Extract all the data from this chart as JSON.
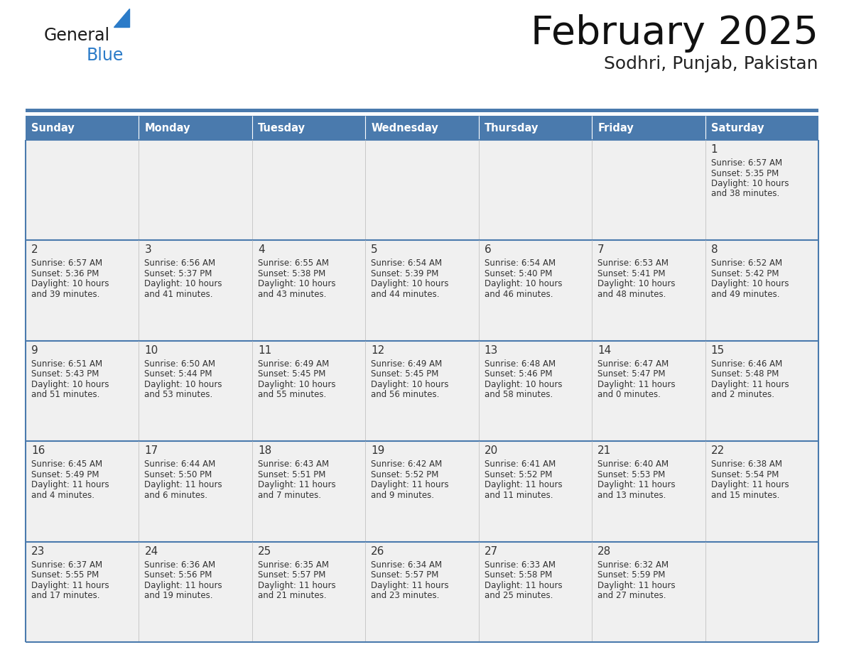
{
  "title": "February 2025",
  "subtitle": "Sodhri, Punjab, Pakistan",
  "header_bg": "#4a7aad",
  "header_text": "#ffffff",
  "cell_bg_light": "#f0f0f0",
  "border_color": "#4a7aad",
  "text_color": "#333333",
  "day_headers": [
    "Sunday",
    "Monday",
    "Tuesday",
    "Wednesday",
    "Thursday",
    "Friday",
    "Saturday"
  ],
  "calendar_data": [
    [
      null,
      null,
      null,
      null,
      null,
      null,
      {
        "day": 1,
        "sunrise": "6:57 AM",
        "sunset": "5:35 PM",
        "daylight": "10 hours",
        "daylight2": "and 38 minutes."
      }
    ],
    [
      {
        "day": 2,
        "sunrise": "6:57 AM",
        "sunset": "5:36 PM",
        "daylight": "10 hours",
        "daylight2": "and 39 minutes."
      },
      {
        "day": 3,
        "sunrise": "6:56 AM",
        "sunset": "5:37 PM",
        "daylight": "10 hours",
        "daylight2": "and 41 minutes."
      },
      {
        "day": 4,
        "sunrise": "6:55 AM",
        "sunset": "5:38 PM",
        "daylight": "10 hours",
        "daylight2": "and 43 minutes."
      },
      {
        "day": 5,
        "sunrise": "6:54 AM",
        "sunset": "5:39 PM",
        "daylight": "10 hours",
        "daylight2": "and 44 minutes."
      },
      {
        "day": 6,
        "sunrise": "6:54 AM",
        "sunset": "5:40 PM",
        "daylight": "10 hours",
        "daylight2": "and 46 minutes."
      },
      {
        "day": 7,
        "sunrise": "6:53 AM",
        "sunset": "5:41 PM",
        "daylight": "10 hours",
        "daylight2": "and 48 minutes."
      },
      {
        "day": 8,
        "sunrise": "6:52 AM",
        "sunset": "5:42 PM",
        "daylight": "10 hours",
        "daylight2": "and 49 minutes."
      }
    ],
    [
      {
        "day": 9,
        "sunrise": "6:51 AM",
        "sunset": "5:43 PM",
        "daylight": "10 hours",
        "daylight2": "and 51 minutes."
      },
      {
        "day": 10,
        "sunrise": "6:50 AM",
        "sunset": "5:44 PM",
        "daylight": "10 hours",
        "daylight2": "and 53 minutes."
      },
      {
        "day": 11,
        "sunrise": "6:49 AM",
        "sunset": "5:45 PM",
        "daylight": "10 hours",
        "daylight2": "and 55 minutes."
      },
      {
        "day": 12,
        "sunrise": "6:49 AM",
        "sunset": "5:45 PM",
        "daylight": "10 hours",
        "daylight2": "and 56 minutes."
      },
      {
        "day": 13,
        "sunrise": "6:48 AM",
        "sunset": "5:46 PM",
        "daylight": "10 hours",
        "daylight2": "and 58 minutes."
      },
      {
        "day": 14,
        "sunrise": "6:47 AM",
        "sunset": "5:47 PM",
        "daylight": "11 hours",
        "daylight2": "and 0 minutes."
      },
      {
        "day": 15,
        "sunrise": "6:46 AM",
        "sunset": "5:48 PM",
        "daylight": "11 hours",
        "daylight2": "and 2 minutes."
      }
    ],
    [
      {
        "day": 16,
        "sunrise": "6:45 AM",
        "sunset": "5:49 PM",
        "daylight": "11 hours",
        "daylight2": "and 4 minutes."
      },
      {
        "day": 17,
        "sunrise": "6:44 AM",
        "sunset": "5:50 PM",
        "daylight": "11 hours",
        "daylight2": "and 6 minutes."
      },
      {
        "day": 18,
        "sunrise": "6:43 AM",
        "sunset": "5:51 PM",
        "daylight": "11 hours",
        "daylight2": "and 7 minutes."
      },
      {
        "day": 19,
        "sunrise": "6:42 AM",
        "sunset": "5:52 PM",
        "daylight": "11 hours",
        "daylight2": "and 9 minutes."
      },
      {
        "day": 20,
        "sunrise": "6:41 AM",
        "sunset": "5:52 PM",
        "daylight": "11 hours",
        "daylight2": "and 11 minutes."
      },
      {
        "day": 21,
        "sunrise": "6:40 AM",
        "sunset": "5:53 PM",
        "daylight": "11 hours",
        "daylight2": "and 13 minutes."
      },
      {
        "day": 22,
        "sunrise": "6:38 AM",
        "sunset": "5:54 PM",
        "daylight": "11 hours",
        "daylight2": "and 15 minutes."
      }
    ],
    [
      {
        "day": 23,
        "sunrise": "6:37 AM",
        "sunset": "5:55 PM",
        "daylight": "11 hours",
        "daylight2": "and 17 minutes."
      },
      {
        "day": 24,
        "sunrise": "6:36 AM",
        "sunset": "5:56 PM",
        "daylight": "11 hours",
        "daylight2": "and 19 minutes."
      },
      {
        "day": 25,
        "sunrise": "6:35 AM",
        "sunset": "5:57 PM",
        "daylight": "11 hours",
        "daylight2": "and 21 minutes."
      },
      {
        "day": 26,
        "sunrise": "6:34 AM",
        "sunset": "5:57 PM",
        "daylight": "11 hours",
        "daylight2": "and 23 minutes."
      },
      {
        "day": 27,
        "sunrise": "6:33 AM",
        "sunset": "5:58 PM",
        "daylight": "11 hours",
        "daylight2": "and 25 minutes."
      },
      {
        "day": 28,
        "sunrise": "6:32 AM",
        "sunset": "5:59 PM",
        "daylight": "11 hours",
        "daylight2": "and 27 minutes."
      },
      null
    ]
  ],
  "logo_color_general": "#1a1a1a",
  "logo_color_blue": "#2b7bc8",
  "logo_triangle_color": "#2b7bc8",
  "fig_width": 11.88,
  "fig_height": 9.18,
  "dpi": 100
}
